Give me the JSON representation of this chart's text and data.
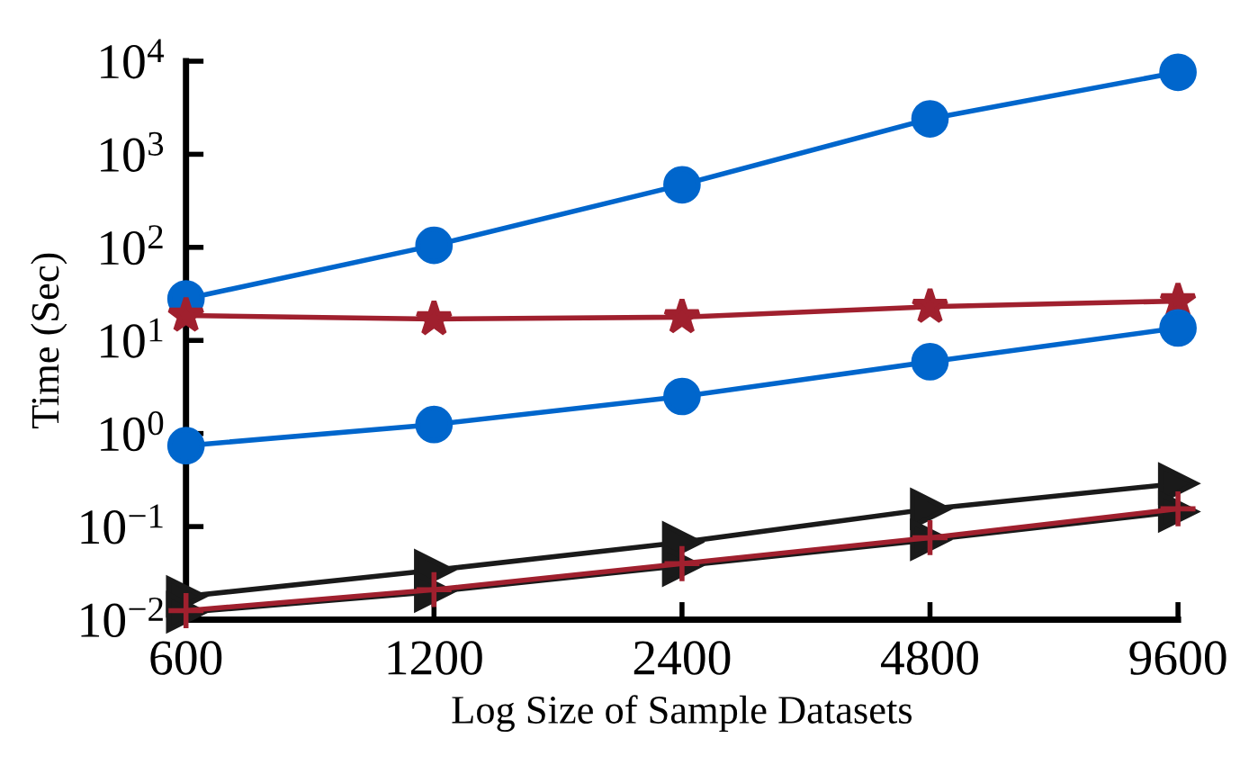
{
  "chart_data": {
    "type": "line",
    "xlabel": "Log Size of Sample Datasets",
    "ylabel": "Time (Sec)",
    "log": "xy",
    "x": [
      600,
      1200,
      2400,
      4800,
      9600
    ],
    "xlim": [
      600,
      9600
    ],
    "xticks": [
      600,
      1200,
      2400,
      4800,
      9600
    ],
    "ylim": [
      0.01,
      10000
    ],
    "yticks": [
      {
        "value": 0.01,
        "label": "10$^{−2}$"
      },
      {
        "value": 0.1,
        "label": "10$^{−1}$"
      },
      {
        "value": 1,
        "label": "10$^{0}$"
      },
      {
        "value": 10,
        "label": "10$^{1}$"
      },
      {
        "value": 100,
        "label": "10$^{2}$"
      },
      {
        "value": 1000,
        "label": "10$^{3}$"
      },
      {
        "value": 10000,
        "label": "10$^{4}$"
      }
    ],
    "grid": false,
    "legend": false,
    "line_style": "solid",
    "series": [
      {
        "color": "#0066cc",
        "marker": "circle",
        "values": [
          28,
          105,
          470,
          2400,
          7600
        ]
      },
      {
        "color": "#a0202e",
        "marker": "star",
        "values": [
          18.5,
          17,
          17.8,
          23,
          26.5
        ]
      },
      {
        "color": "#0066cc",
        "marker": "circle",
        "values": [
          0.74,
          1.25,
          2.5,
          5.9,
          13.6
        ]
      },
      {
        "color": "#1a1a1a",
        "marker": "triangle",
        "values": [
          0.0178,
          0.034,
          0.068,
          0.155,
          0.29
        ]
      },
      {
        "color": "#1a1a1a",
        "marker": "triangle",
        "values": [
          0.012,
          0.02,
          0.038,
          0.072,
          0.145
        ]
      },
      {
        "color": "#a0202e",
        "marker": "cross",
        "values": [
          0.0125,
          0.021,
          0.04,
          0.076,
          0.155
        ]
      }
    ]
  }
}
